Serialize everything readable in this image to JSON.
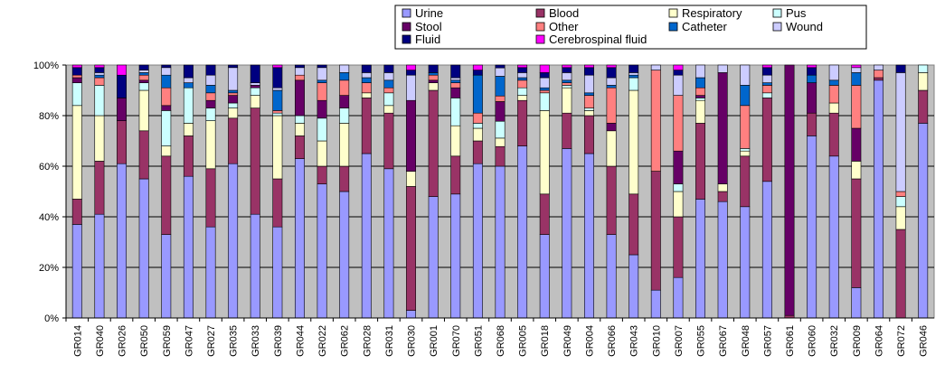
{
  "chart_data": {
    "type": "bar",
    "stacked": true,
    "percent": true,
    "title": "",
    "xlabel": "",
    "ylabel": "",
    "ylim": [
      0,
      100
    ],
    "y_ticks": [
      "0%",
      "20%",
      "40%",
      "60%",
      "80%",
      "100%"
    ],
    "grid": true,
    "legend_position": "top-right",
    "plot_background": "#c0c0c0",
    "categories": [
      "GR014",
      "GR040",
      "GR026",
      "GR050",
      "GR059",
      "GR047",
      "GR027",
      "GR035",
      "GR033",
      "GR039",
      "GR044",
      "GR022",
      "GR062",
      "GR028",
      "GR031",
      "GR030",
      "GR001",
      "GR070",
      "GR051",
      "GR068",
      "GR005",
      "GR018",
      "GR049",
      "GR004",
      "GR066",
      "GR043",
      "GR010",
      "GR007",
      "GR055",
      "GR067",
      "GR048",
      "GR057",
      "GR061",
      "GR060",
      "GR032",
      "GR009",
      "GR064",
      "GR072",
      "GR046"
    ],
    "series": [
      {
        "name": "Urine",
        "color": "#9999ff",
        "values": [
          37,
          41,
          61,
          55,
          33,
          56,
          36,
          61,
          41,
          36,
          63,
          53,
          50,
          65,
          59,
          3,
          48,
          49,
          61,
          54,
          68,
          33,
          67,
          65,
          33,
          25,
          11,
          16,
          47,
          46,
          44,
          54,
          0,
          72,
          64,
          12,
          94,
          0,
          77
        ]
      },
      {
        "name": "Blood",
        "color": "#993366",
        "values": [
          10,
          21,
          17,
          19,
          31,
          16,
          23,
          18,
          42,
          19,
          9,
          7,
          10,
          22,
          22,
          49,
          42,
          15,
          9,
          7,
          18,
          16,
          14,
          15,
          27,
          24,
          47,
          24,
          30,
          4,
          20,
          33,
          1,
          9,
          17,
          43,
          1,
          35,
          13
        ]
      },
      {
        "name": "Respiratory",
        "color": "#ffffcc",
        "values": [
          37,
          18,
          0,
          16,
          4,
          5,
          19,
          4,
          5,
          25,
          5,
          10,
          17,
          2,
          3,
          6,
          3,
          12,
          5,
          3,
          2,
          33,
          10,
          2,
          14,
          41,
          0,
          10,
          9,
          3,
          2,
          0,
          0,
          0,
          4,
          7,
          0,
          9,
          7
        ]
      },
      {
        "name": "Pus",
        "color": "#ccffff",
        "values": [
          9,
          12,
          0,
          3,
          14,
          14,
          5,
          2,
          3,
          1,
          3,
          9,
          6,
          0,
          5,
          0,
          0,
          11,
          2,
          6,
          3,
          7,
          1,
          1,
          0,
          5,
          0,
          3,
          1,
          0,
          1,
          2,
          0,
          0,
          0,
          0,
          0,
          4,
          3
        ]
      },
      {
        "name": "Stool",
        "color": "#660066",
        "values": [
          2,
          0,
          9,
          1,
          2,
          0,
          3,
          3,
          1,
          0,
          14,
          7,
          5,
          0,
          0,
          28,
          1,
          4,
          0,
          7,
          0,
          0,
          0,
          0,
          3,
          0,
          0,
          13,
          1,
          44,
          0,
          0,
          99,
          12,
          0,
          13,
          0,
          0,
          0
        ]
      },
      {
        "name": "Other",
        "color": "#ff8080",
        "values": [
          1,
          3,
          0,
          2,
          7,
          0,
          3,
          1,
          0,
          1,
          2,
          7,
          6,
          4,
          2,
          0,
          2,
          2,
          4,
          2,
          3,
          1,
          1,
          5,
          14,
          0,
          40,
          22,
          3,
          0,
          17,
          3,
          0,
          0,
          7,
          17,
          3,
          2,
          0
        ]
      },
      {
        "name": "Catheter",
        "color": "#0066cc",
        "values": [
          0,
          1,
          0,
          1,
          5,
          2,
          3,
          1,
          0,
          8,
          0,
          1,
          3,
          2,
          3,
          0,
          1,
          1,
          15,
          7,
          1,
          1,
          1,
          1,
          1,
          1,
          0,
          0,
          4,
          0,
          8,
          1,
          0,
          3,
          2,
          5,
          0,
          0,
          0
        ]
      },
      {
        "name": "Wound",
        "color": "#ccccff",
        "values": [
          0,
          1,
          0,
          1,
          3,
          2,
          4,
          9,
          1,
          1,
          3,
          5,
          3,
          2,
          3,
          10,
          0,
          1,
          0,
          3,
          2,
          4,
          3,
          7,
          3,
          1,
          2,
          8,
          5,
          3,
          8,
          3,
          0,
          0,
          6,
          2,
          2,
          47,
          0
        ]
      },
      {
        "name": "Fluid",
        "color": "#000080",
        "values": [
          3,
          2,
          9,
          2,
          1,
          5,
          4,
          1,
          7,
          8,
          1,
          1,
          0,
          3,
          3,
          2,
          3,
          5,
          2,
          1,
          2,
          2,
          2,
          3,
          4,
          3,
          0,
          2,
          0,
          0,
          0,
          3,
          0,
          3,
          0,
          0,
          0,
          3,
          0
        ]
      },
      {
        "name": "Cerebrospinal fluid",
        "color": "#ff00ff",
        "values": [
          1,
          1,
          4,
          0,
          0,
          0,
          0,
          0,
          0,
          1,
          0,
          0,
          0,
          0,
          0,
          2,
          0,
          0,
          2,
          0,
          1,
          3,
          1,
          1,
          1,
          0,
          0,
          2,
          0,
          0,
          0,
          1,
          0,
          1,
          0,
          1,
          0,
          0,
          0
        ]
      }
    ]
  }
}
